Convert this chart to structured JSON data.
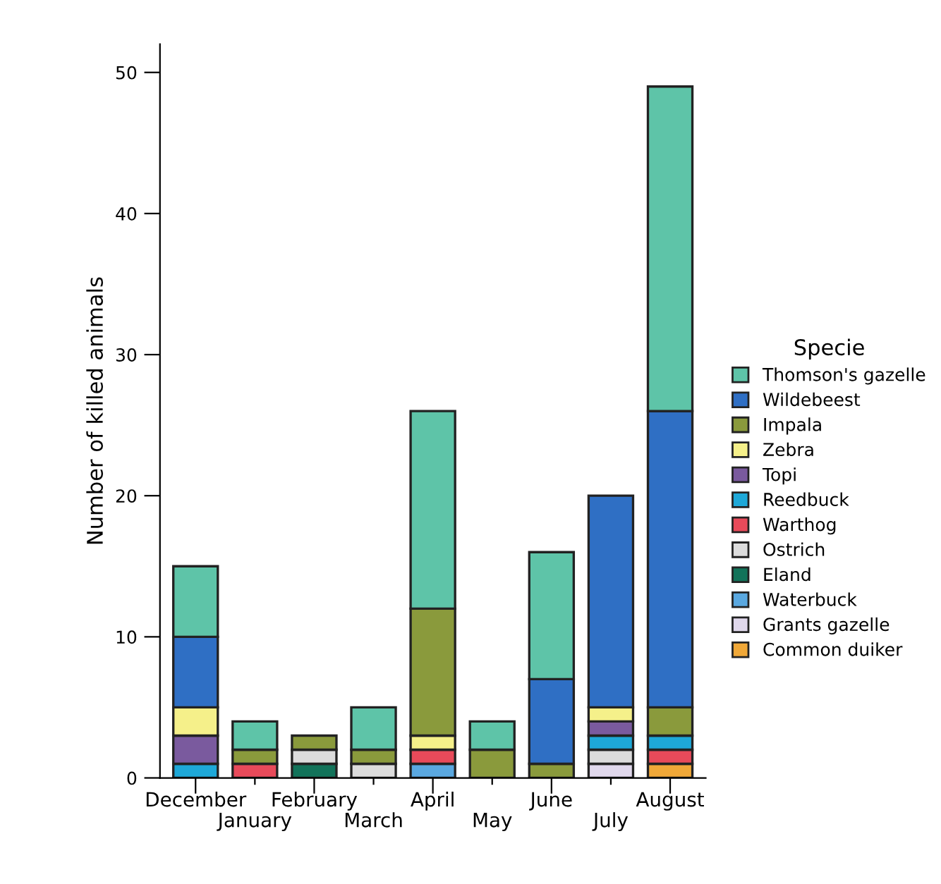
{
  "chart_data": {
    "type": "bar",
    "stacked": true,
    "ylabel": "Number of killed animals",
    "legend_title": "Specie",
    "legend": "right",
    "categories": [
      "December",
      "January",
      "February",
      "March",
      "April",
      "May",
      "June",
      "July",
      "August"
    ],
    "ylim": [
      0,
      52
    ],
    "yticks": [
      0,
      10,
      20,
      30,
      40,
      50
    ],
    "grid": false,
    "series": [
      {
        "name": "Common duiker",
        "color": "#f0a838",
        "values": [
          null,
          null,
          null,
          null,
          null,
          null,
          null,
          null,
          1
        ]
      },
      {
        "name": "Grants gazelle",
        "color": "#e0d8ec",
        "values": [
          null,
          null,
          null,
          null,
          null,
          null,
          null,
          1,
          null
        ]
      },
      {
        "name": "Waterbuck",
        "color": "#5aa8e0",
        "values": [
          null,
          null,
          null,
          null,
          1,
          null,
          null,
          null,
          null
        ]
      },
      {
        "name": "Eland",
        "color": "#12735a",
        "values": [
          null,
          null,
          1,
          null,
          null,
          null,
          null,
          null,
          null
        ]
      },
      {
        "name": "Ostrich",
        "color": "#dcdcdc",
        "values": [
          null,
          null,
          1,
          1,
          null,
          null,
          null,
          1,
          null
        ]
      },
      {
        "name": "Warthog",
        "color": "#e84a5a",
        "values": [
          null,
          1,
          null,
          null,
          1,
          null,
          null,
          null,
          1
        ]
      },
      {
        "name": "Reedbuck",
        "color": "#1ea8d8",
        "values": [
          1,
          null,
          null,
          null,
          null,
          null,
          null,
          1,
          1
        ]
      },
      {
        "name": "Topi",
        "color": "#7a5a9e",
        "values": [
          2,
          null,
          null,
          null,
          null,
          null,
          null,
          1,
          null
        ]
      },
      {
        "name": "Zebra",
        "color": "#f5f08a",
        "values": [
          2,
          null,
          null,
          null,
          1,
          null,
          null,
          1,
          null
        ]
      },
      {
        "name": "Impala",
        "color": "#8a9a3c",
        "values": [
          null,
          1,
          1,
          1,
          9,
          2,
          1,
          null,
          2
        ]
      },
      {
        "name": "Wildebeest",
        "color": "#2f6fc4",
        "values": [
          5,
          null,
          null,
          null,
          null,
          null,
          6,
          15,
          21
        ]
      },
      {
        "name": "Thomson's gazelle",
        "color": "#5ec4a8",
        "values": [
          5,
          2,
          null,
          3,
          14,
          2,
          9,
          null,
          23
        ]
      }
    ]
  }
}
